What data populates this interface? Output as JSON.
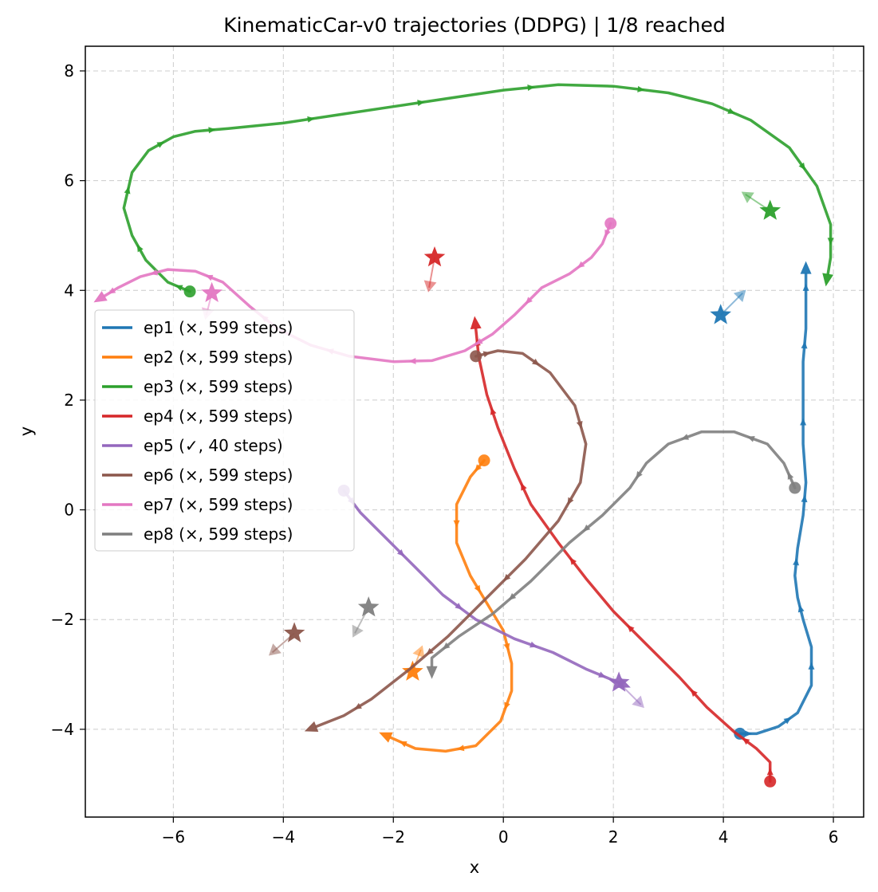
{
  "chart_data": {
    "type": "line",
    "title": "KinematicCar-v0 trajectories (DDPG) | 1/8 reached",
    "xlabel": "x",
    "ylabel": "y",
    "xlim": [
      -7.6,
      6.55
    ],
    "ylim": [
      -5.6,
      8.45
    ],
    "xticks": [
      -6,
      -4,
      -2,
      0,
      2,
      4,
      6
    ],
    "yticks": [
      -4,
      -2,
      0,
      2,
      4,
      6,
      8
    ],
    "xtick_labels": [
      "−6",
      "−4",
      "−2",
      "0",
      "2",
      "4",
      "6"
    ],
    "ytick_labels": [
      "−4",
      "−2",
      "0",
      "2",
      "4",
      "6",
      "8"
    ],
    "grid": true,
    "legend_position": "center-left",
    "series": [
      {
        "name": "ep1 (×, 599 steps)",
        "color": "#1f77b4",
        "start": [
          4.3,
          -4.08
        ],
        "goal": [
          3.95,
          3.55
        ],
        "goal_heading": [
          4.35,
          3.95
        ],
        "points": [
          [
            4.3,
            -4.08
          ],
          [
            4.6,
            -4.08
          ],
          [
            5.0,
            -3.95
          ],
          [
            5.35,
            -3.7
          ],
          [
            5.6,
            -3.2
          ],
          [
            5.6,
            -2.5
          ],
          [
            5.45,
            -2.0
          ],
          [
            5.35,
            -1.6
          ],
          [
            5.3,
            -1.2
          ],
          [
            5.35,
            -0.7
          ],
          [
            5.45,
            -0.1
          ],
          [
            5.5,
            0.5
          ],
          [
            5.45,
            1.2
          ],
          [
            5.45,
            2.0
          ],
          [
            5.45,
            2.7
          ],
          [
            5.5,
            3.3
          ],
          [
            5.5,
            3.8
          ],
          [
            5.5,
            4.3
          ]
        ]
      },
      {
        "name": "ep2 (×, 599 steps)",
        "color": "#ff7f0e",
        "start": [
          -0.35,
          0.9
        ],
        "goal": [
          -1.65,
          -2.95
        ],
        "goal_heading": [
          -1.5,
          -2.55
        ],
        "points": [
          [
            -0.35,
            0.9
          ],
          [
            -0.6,
            0.6
          ],
          [
            -0.85,
            0.1
          ],
          [
            -0.85,
            -0.6
          ],
          [
            -0.6,
            -1.2
          ],
          [
            -0.3,
            -1.7
          ],
          [
            0.0,
            -2.2
          ],
          [
            0.15,
            -2.8
          ],
          [
            0.15,
            -3.3
          ],
          [
            -0.05,
            -3.85
          ],
          [
            -0.5,
            -4.3
          ],
          [
            -1.05,
            -4.4
          ],
          [
            -1.6,
            -4.35
          ],
          [
            -2.05,
            -4.15
          ]
        ]
      },
      {
        "name": "ep3 (×, 599 steps)",
        "color": "#2ca02c",
        "start": [
          -5.7,
          3.98
        ],
        "goal": [
          4.85,
          5.45
        ],
        "goal_heading": [
          4.4,
          5.75
        ],
        "points": [
          [
            -5.7,
            3.98
          ],
          [
            -6.1,
            4.15
          ],
          [
            -6.5,
            4.55
          ],
          [
            -6.75,
            5.0
          ],
          [
            -6.9,
            5.5
          ],
          [
            -6.75,
            6.15
          ],
          [
            -6.45,
            6.55
          ],
          [
            -6.0,
            6.8
          ],
          [
            -5.6,
            6.9
          ],
          [
            -5.0,
            6.95
          ],
          [
            -4.0,
            7.05
          ],
          [
            -3.0,
            7.2
          ],
          [
            -2.0,
            7.35
          ],
          [
            -1.0,
            7.5
          ],
          [
            0.0,
            7.65
          ],
          [
            1.0,
            7.75
          ],
          [
            2.0,
            7.72
          ],
          [
            3.0,
            7.6
          ],
          [
            3.8,
            7.4
          ],
          [
            4.5,
            7.1
          ],
          [
            5.2,
            6.6
          ],
          [
            5.7,
            5.9
          ],
          [
            5.95,
            5.2
          ],
          [
            5.95,
            4.6
          ],
          [
            5.9,
            4.3
          ]
        ]
      },
      {
        "name": "ep4 (×, 599 steps)",
        "color": "#d62728",
        "start": [
          4.85,
          -4.95
        ],
        "goal": [
          -1.25,
          4.6
        ],
        "goal_heading": [
          -1.35,
          4.05
        ],
        "points": [
          [
            4.85,
            -4.95
          ],
          [
            4.85,
            -4.6
          ],
          [
            4.6,
            -4.35
          ],
          [
            4.2,
            -4.05
          ],
          [
            3.7,
            -3.6
          ],
          [
            3.2,
            -3.05
          ],
          [
            2.6,
            -2.45
          ],
          [
            2.0,
            -1.85
          ],
          [
            1.5,
            -1.25
          ],
          [
            1.0,
            -0.6
          ],
          [
            0.5,
            0.1
          ],
          [
            0.2,
            0.75
          ],
          [
            -0.1,
            1.5
          ],
          [
            -0.3,
            2.1
          ],
          [
            -0.45,
            2.8
          ],
          [
            -0.5,
            3.3
          ]
        ]
      },
      {
        "name": "ep5 (✓, 40 steps)",
        "color": "#9467bd",
        "start": [
          -2.9,
          0.35
        ],
        "goal": [
          2.1,
          -3.15
        ],
        "goal_heading": [
          2.5,
          -3.55
        ],
        "points": [
          [
            -2.9,
            0.35
          ],
          [
            -2.6,
            -0.05
          ],
          [
            -2.1,
            -0.55
          ],
          [
            -1.6,
            -1.05
          ],
          [
            -1.1,
            -1.55
          ],
          [
            -0.5,
            -2.0
          ],
          [
            0.2,
            -2.35
          ],
          [
            0.9,
            -2.6
          ],
          [
            1.5,
            -2.9
          ],
          [
            2.1,
            -3.15
          ]
        ]
      },
      {
        "name": "ep6 (×, 599 steps)",
        "color": "#8c564b",
        "start": [
          -0.5,
          2.8
        ],
        "goal": [
          -3.8,
          -2.25
        ],
        "goal_heading": [
          -4.2,
          -2.6
        ],
        "points": [
          [
            -0.5,
            2.8
          ],
          [
            -0.1,
            2.9
          ],
          [
            0.35,
            2.85
          ],
          [
            0.85,
            2.5
          ],
          [
            1.3,
            1.9
          ],
          [
            1.5,
            1.2
          ],
          [
            1.4,
            0.5
          ],
          [
            1.0,
            -0.2
          ],
          [
            0.4,
            -0.9
          ],
          [
            -0.3,
            -1.6
          ],
          [
            -1.0,
            -2.3
          ],
          [
            -1.7,
            -2.9
          ],
          [
            -2.4,
            -3.45
          ],
          [
            -2.9,
            -3.75
          ],
          [
            -3.4,
            -3.95
          ]
        ]
      },
      {
        "name": "ep7 (×, 599 steps)",
        "color": "#e377c2",
        "start": [
          1.95,
          5.22
        ],
        "goal": [
          -5.3,
          3.95
        ],
        "goal_heading": [
          -5.4,
          3.55
        ],
        "points": [
          [
            1.95,
            5.22
          ],
          [
            1.8,
            4.85
          ],
          [
            1.6,
            4.6
          ],
          [
            1.2,
            4.3
          ],
          [
            0.7,
            4.05
          ],
          [
            0.2,
            3.55
          ],
          [
            -0.2,
            3.2
          ],
          [
            -0.7,
            2.9
          ],
          [
            -1.3,
            2.72
          ],
          [
            -2.0,
            2.7
          ],
          [
            -2.8,
            2.8
          ],
          [
            -3.5,
            3.0
          ],
          [
            -4.1,
            3.3
          ],
          [
            -4.6,
            3.7
          ],
          [
            -5.1,
            4.15
          ],
          [
            -5.6,
            4.35
          ],
          [
            -6.1,
            4.38
          ],
          [
            -6.6,
            4.25
          ],
          [
            -7.0,
            4.05
          ],
          [
            -7.25,
            3.9
          ]
        ]
      },
      {
        "name": "ep8 (×, 599 steps)",
        "color": "#7f7f7f",
        "start": [
          5.3,
          0.4
        ],
        "goal": [
          -2.45,
          -1.78
        ],
        "goal_heading": [
          -2.7,
          -2.25
        ],
        "points": [
          [
            5.3,
            0.4
          ],
          [
            5.1,
            0.85
          ],
          [
            4.8,
            1.2
          ],
          [
            4.2,
            1.42
          ],
          [
            3.6,
            1.42
          ],
          [
            3.0,
            1.2
          ],
          [
            2.6,
            0.85
          ],
          [
            2.3,
            0.4
          ],
          [
            1.8,
            -0.1
          ],
          [
            1.2,
            -0.6
          ],
          [
            0.5,
            -1.3
          ],
          [
            -0.2,
            -1.9
          ],
          [
            -0.8,
            -2.3
          ],
          [
            -1.3,
            -2.7
          ],
          [
            -1.3,
            -2.85
          ]
        ]
      }
    ]
  }
}
